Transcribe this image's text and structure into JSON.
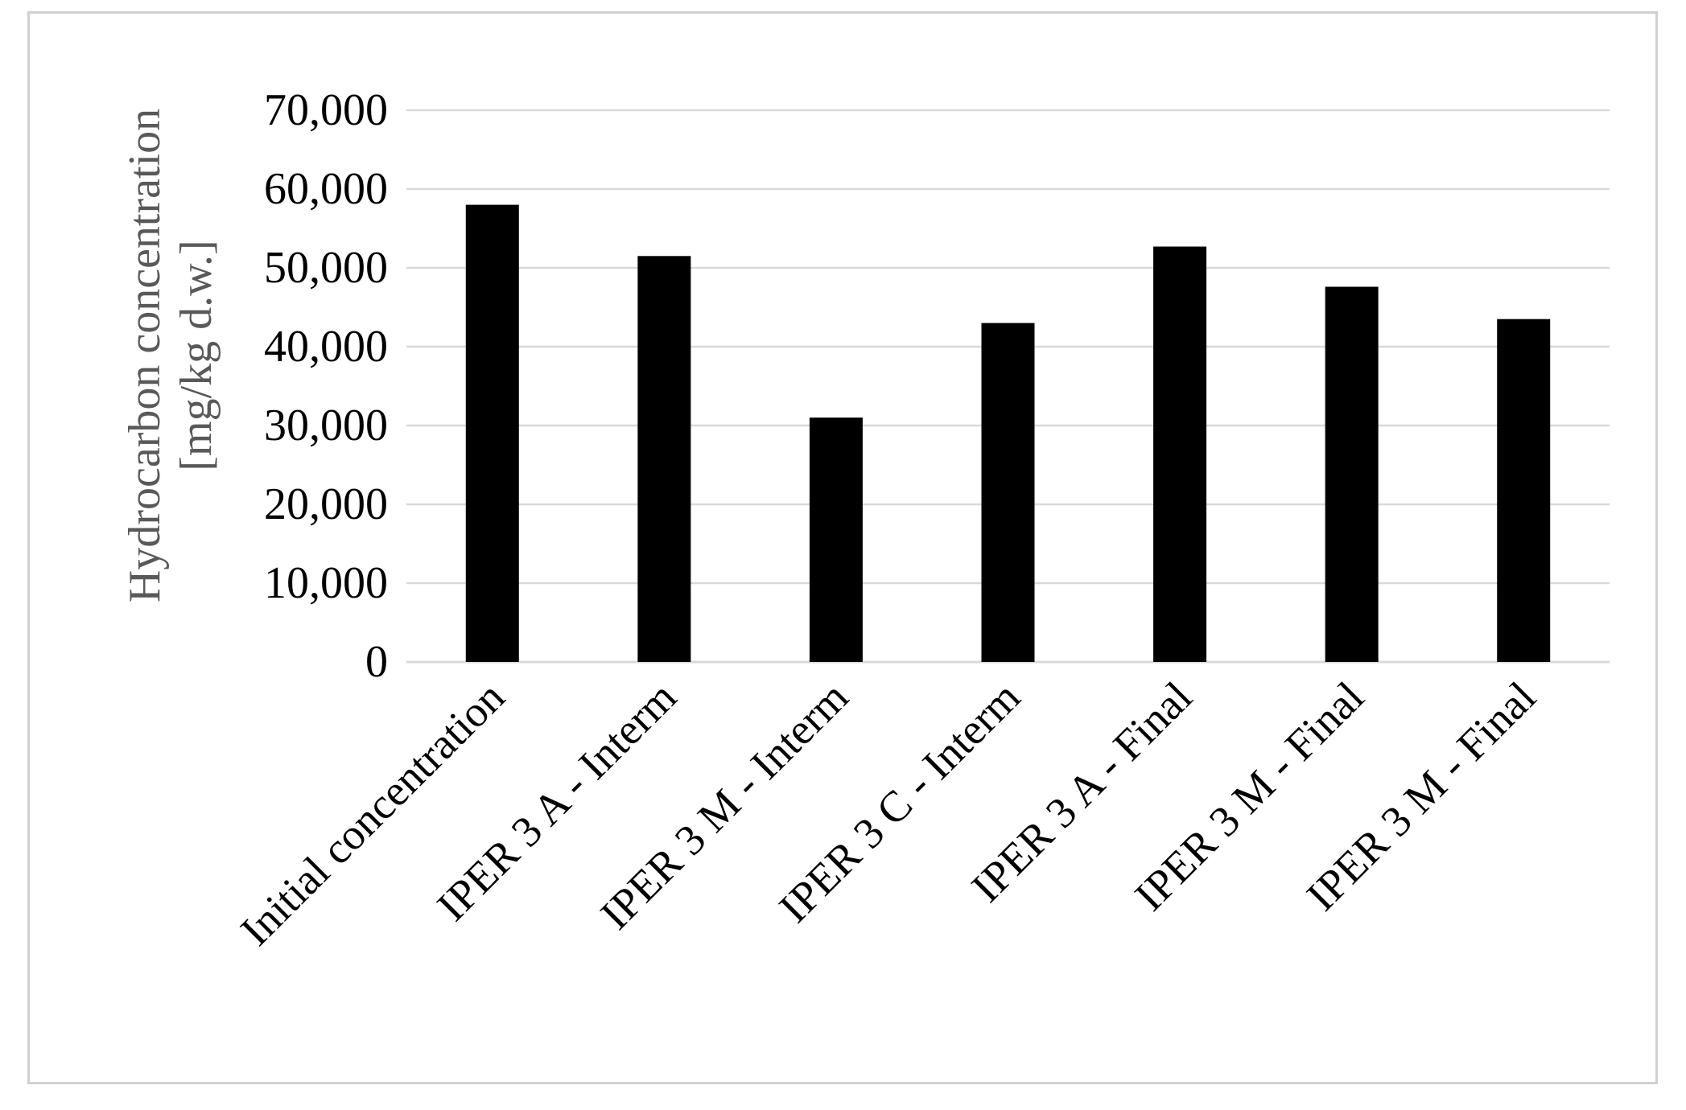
{
  "chart_data": {
    "type": "bar",
    "title": "",
    "xlabel": "",
    "ylabel": [
      "Hydrocarbon concentration",
      "[mg/kg d.w.]"
    ],
    "categories": [
      "Initial concentration",
      "IPER 3 A - Interm",
      "IPER 3 M - Interm",
      "IPER 3 C - Interm",
      "IPER 3 A - Final",
      "IPER 3 M - Final",
      "IPER 3 M - Final"
    ],
    "values": [
      58000,
      51500,
      31000,
      43000,
      52700,
      47600,
      43500
    ],
    "ylim": [
      0,
      70000
    ],
    "yticks": [
      0,
      10000,
      20000,
      30000,
      40000,
      50000,
      60000,
      70000
    ],
    "ytick_labels": [
      "0",
      "10,000",
      "20,000",
      "30,000",
      "40,000",
      "50,000",
      "60,000",
      "70,000"
    ],
    "grid": true,
    "bar_color": "#000000",
    "grid_color": "#d9d9d9",
    "legend": "none"
  }
}
